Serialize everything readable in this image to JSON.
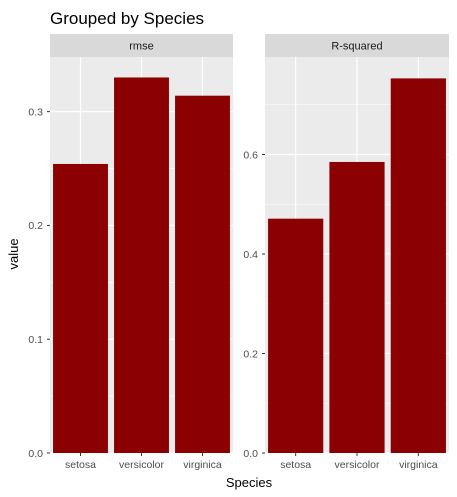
{
  "chart_data": {
    "type": "bar",
    "title": "Grouped by Species",
    "xlabel": "Species",
    "ylabel": "value",
    "categories": [
      "setosa",
      "versicolor",
      "virginica"
    ],
    "bar_color": "#8B0000",
    "panel_background": "#EBEBEB",
    "strip_background": "#D9D9D9",
    "grid": true,
    "facet_scales": "free_y",
    "panels": [
      {
        "name": "rmse",
        "values": [
          0.254,
          0.33,
          0.314
        ],
        "ylim": [
          0,
          0.348
        ],
        "yticks": [
          0.0,
          0.1,
          0.2,
          0.3
        ],
        "ytick_labels": [
          "0.0",
          "0.1",
          "0.2",
          "0.3"
        ]
      },
      {
        "name": "R-squared",
        "values": [
          0.471,
          0.585,
          0.753
        ],
        "ylim": [
          0,
          0.796
        ],
        "yticks": [
          0.0,
          0.2,
          0.4,
          0.6
        ],
        "ytick_labels": [
          "0.0",
          "0.2",
          "0.4",
          "0.6"
        ]
      }
    ]
  }
}
